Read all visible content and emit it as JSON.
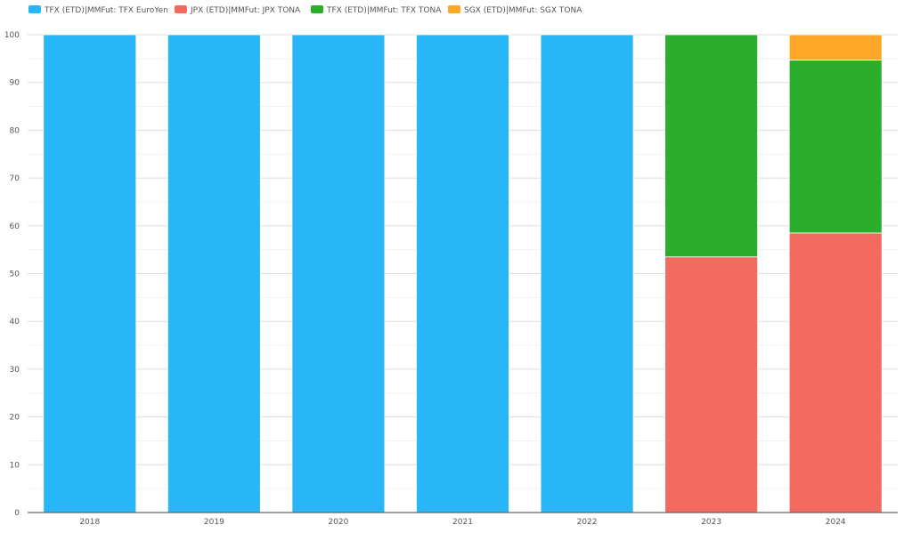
{
  "chart_data": {
    "type": "bar",
    "stacked": true,
    "categories": [
      "2018",
      "2019",
      "2020",
      "2021",
      "2022",
      "2023",
      "2024"
    ],
    "series": [
      {
        "name": "TFX (ETD)|MMFut: TFX EuroYen",
        "color": "#29B6F6",
        "values": [
          100,
          100,
          100,
          100,
          100,
          0,
          0
        ]
      },
      {
        "name": "JPX (ETD)|MMFut: JPX TONA",
        "color": "#F26B5E",
        "values": [
          0,
          0,
          0,
          0,
          0,
          53.5,
          58.5
        ]
      },
      {
        "name": "TFX (ETD)|MMFut: TFX TONA",
        "color": "#2BAE2B",
        "values": [
          0,
          0,
          0,
          0,
          0,
          46.5,
          36.2
        ]
      },
      {
        "name": "SGX (ETD)|MMFut: SGX TONA",
        "color": "#FFA726",
        "values": [
          0,
          0,
          0,
          0,
          0,
          0,
          5.3
        ]
      }
    ],
    "ylim": [
      0,
      100
    ],
    "yticks": [
      0,
      10,
      20,
      30,
      40,
      50,
      60,
      70,
      80,
      90,
      100
    ],
    "grid": true,
    "legend_position": "top-left",
    "title": "",
    "xlabel": "",
    "ylabel": ""
  }
}
